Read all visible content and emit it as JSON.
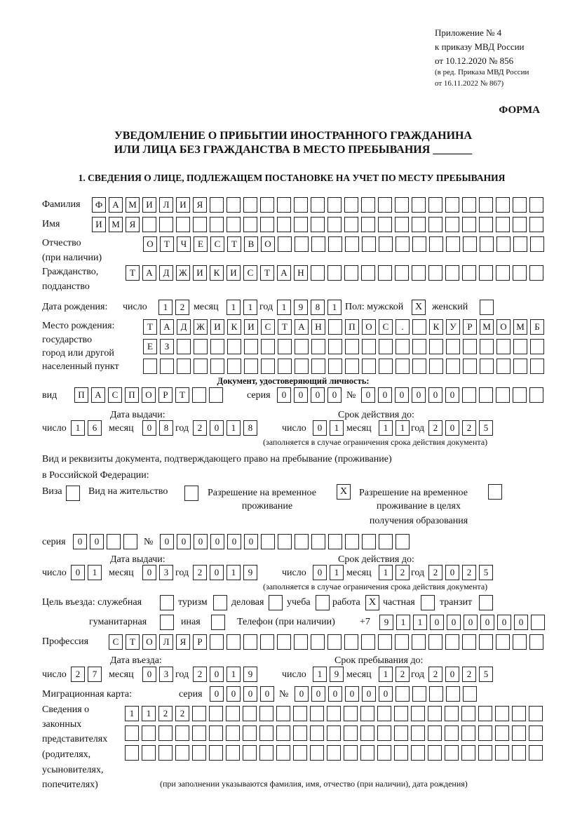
{
  "header": {
    "appendix": [
      "Приложение № 4",
      "к приказу МВД России",
      "от 10.12.2020 № 856"
    ],
    "edition": [
      "(в ред. Приказа МВД России",
      "от 16.11.2022 № 867)"
    ],
    "form_label": "ФОРМА",
    "title_line1": "УВЕДОМЛЕНИЕ О ПРИБЫТИИ ИНОСТРАННОГО ГРАЖДАНИНА",
    "title_line2": "ИЛИ ЛИЦА БЕЗ ГРАЖДАНСТВА В МЕСТО ПРЕБЫВАНИЯ _______",
    "section1": "1. СВЕДЕНИЯ О ЛИЦЕ, ПОДЛЕЖАЩЕМ ПОСТАНОВКЕ НА УЧЕТ ПО МЕСТУ ПРЕБЫВАНИЯ"
  },
  "labels": {
    "surname": "Фамилия",
    "name": "Имя",
    "patronymic": "Отчество",
    "patronymic2": "(при наличии)",
    "citizenship": "Гражданство,",
    "citizenship2": "подданство",
    "birth_date": "Дата рождения:",
    "day": "число",
    "month": "месяц",
    "year": "год",
    "sex": "Пол: мужской",
    "female": "женский",
    "birthplace": [
      "Место рождения:",
      "государство",
      "город или другой",
      "населенный пункт"
    ],
    "id_doc": "Документ, удостоверяющий личность:",
    "kind": "вид",
    "series": "серия",
    "number": "№",
    "issue_date": "Дата выдачи:",
    "valid_until": "Срок действия до:",
    "valid_note": "(заполняется в случае ограничения срока действия документа)",
    "right_doc1": "Вид и реквизиты документа, подтверждающего право на пребывание (проживание)",
    "right_doc2": "в Российской Федерации:",
    "visa": "Виза",
    "residence": "Вид на жительство",
    "temp1": "Разрешение на временное",
    "temp2": "проживание",
    "edu1": "Разрешение на временное",
    "edu2": "проживание в целях",
    "edu3": "получения образования",
    "purpose": "Цель въезда: служебная",
    "tourism": "туризм",
    "business": "деловая",
    "study": "учеба",
    "work": "работа",
    "private": "частная",
    "transit": "транзит",
    "humanitarian": "гуманитарная",
    "other": "иная",
    "phone": "Телефон (при наличии)",
    "phone_prefix": "+7",
    "profession": "Профессия",
    "entry_date": "Дата въезда:",
    "stay_until": "Срок пребывания до:",
    "migration_card": "Миграционная карта:",
    "reps": [
      "Сведения о",
      "законных",
      "представителях",
      "(родителях,",
      "усыновителях,",
      "попечителях)"
    ],
    "reps_note": "(при заполнении указываются фамилия, имя, отчество (при наличии), дата рождения)"
  },
  "person": {
    "surname": "ФАМИЛИЯ",
    "name": "ИМЯ",
    "patronymic": "ОТЧЕСТВО",
    "citizenship": "ТАДЖИКИСТАН",
    "birth_day": "12",
    "birth_month": "11",
    "birth_year": "1981",
    "male": "X",
    "female": "",
    "birthplace1": "ТАДЖИКИСТАН ПОС. КУРМОМБ",
    "birthplace2": "ЕЗ",
    "birthplace3": ""
  },
  "id_document": {
    "kind": "ПАСПОРТ",
    "series": "0000",
    "number": "000000",
    "issue_day": "16",
    "issue_month": "08",
    "issue_year": "2018",
    "valid_day": "01",
    "valid_month": "11",
    "valid_year": "2025"
  },
  "right_document": {
    "visa": "",
    "residence": "",
    "temp_residence": "X",
    "edu_residence": "",
    "series": "00",
    "number": "000000",
    "issue_day": "01",
    "issue_month": "03",
    "issue_year": "2019",
    "valid_day": "01",
    "valid_month": "12",
    "valid_year": "2025"
  },
  "purpose": {
    "service": "",
    "tourism": "",
    "business": "",
    "study": "",
    "work": "X",
    "private": "",
    "transit": "",
    "humanitarian": "",
    "other": "",
    "phone": "911000000"
  },
  "profession": "СТОЛЯР",
  "entry": {
    "entry_day": "27",
    "entry_month": "03",
    "entry_year": "2019",
    "stay_day": "19",
    "stay_month": "12",
    "stay_year": "2025"
  },
  "migration_card": {
    "series": "0000",
    "number": "000000"
  },
  "representatives": [
    "1122",
    "",
    ""
  ]
}
